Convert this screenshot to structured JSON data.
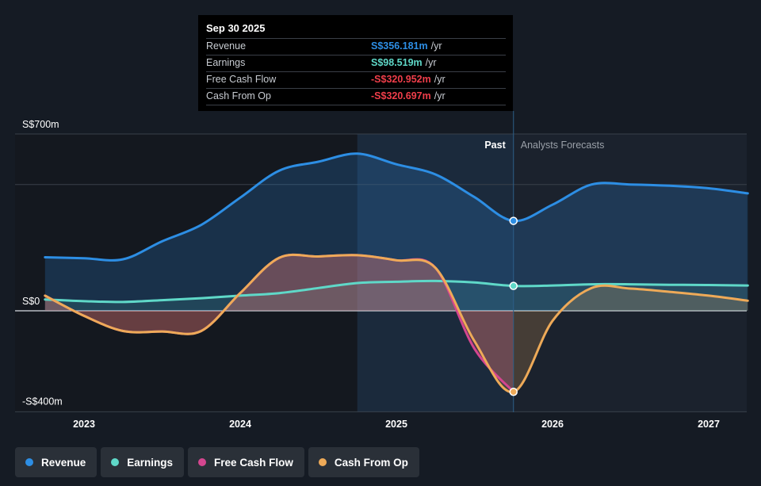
{
  "tooltip": {
    "date": "Sep 30 2025",
    "rows": [
      {
        "label": "Revenue",
        "value": "S$356.181m",
        "unit": "/yr",
        "color": "#2d8ee4"
      },
      {
        "label": "Earnings",
        "value": "S$98.519m",
        "unit": "/yr",
        "color": "#5fd8c8"
      },
      {
        "label": "Free Cash Flow",
        "value": "-S$320.952m",
        "unit": "/yr",
        "color": "#ef3e4a"
      },
      {
        "label": "Cash From Op",
        "value": "-S$320.697m",
        "unit": "/yr",
        "color": "#ef3e4a"
      }
    ]
  },
  "legend": [
    {
      "label": "Revenue",
      "color": "#2d8ee4"
    },
    {
      "label": "Earnings",
      "color": "#5fd8c8"
    },
    {
      "label": "Free Cash Flow",
      "color": "#d4468f"
    },
    {
      "label": "Cash From Op",
      "color": "#eeaa58"
    }
  ],
  "chart_data": {
    "type": "area",
    "y_unit": "S$m",
    "ylim": [
      -400,
      700
    ],
    "y_ticks": [
      {
        "value": 700,
        "label": "S$700m"
      },
      {
        "value": 0,
        "label": "S$0"
      },
      {
        "value": -400,
        "label": "-S$400m"
      }
    ],
    "gridlines": [
      700,
      500,
      0,
      -400
    ],
    "x_ticks": [
      "2023",
      "2024",
      "2025",
      "2026",
      "2027"
    ],
    "xlim": [
      2022.7,
      2027.25
    ],
    "region_labels": {
      "past": "Past",
      "forecast": "Analysts Forecasts"
    },
    "present_x": 2025.75,
    "highlight_start_x": 2024.75,
    "series": [
      {
        "name": "Revenue",
        "color": "#2d8ee4",
        "x": [
          2022.75,
          2023.0,
          2023.25,
          2023.5,
          2023.75,
          2024.0,
          2024.25,
          2024.5,
          2024.75,
          2025.0,
          2025.25,
          2025.5,
          2025.75,
          2026.0,
          2026.25,
          2026.5,
          2026.75,
          2027.0,
          2027.25
        ],
        "y": [
          212,
          208,
          204,
          275,
          340,
          448,
          555,
          590,
          622,
          580,
          540,
          450,
          356,
          420,
          500,
          500,
          495,
          485,
          465
        ]
      },
      {
        "name": "Earnings",
        "color": "#5fd8c8",
        "x": [
          2022.75,
          2023.0,
          2023.25,
          2023.5,
          2023.75,
          2024.0,
          2024.25,
          2024.5,
          2024.75,
          2025.0,
          2025.25,
          2025.5,
          2025.75,
          2026.0,
          2026.25,
          2026.5,
          2026.75,
          2027.0,
          2027.25
        ],
        "y": [
          45,
          38,
          35,
          42,
          50,
          60,
          70,
          90,
          110,
          115,
          118,
          112,
          98.5,
          100,
          105,
          105,
          103,
          102,
          100
        ]
      },
      {
        "name": "Free Cash Flow",
        "color": "#d4468f",
        "x": [
          2022.75,
          2023.0,
          2023.25,
          2023.5,
          2023.75,
          2024.0,
          2024.25,
          2024.5,
          2024.75,
          2025.0,
          2025.25,
          2025.5,
          2025.75
        ],
        "y": [
          60,
          -20,
          -80,
          -82,
          -80,
          70,
          210,
          215,
          220,
          200,
          170,
          -150,
          -321
        ]
      },
      {
        "name": "Cash From Op",
        "color": "#eeaa58",
        "x": [
          2022.75,
          2023.0,
          2023.25,
          2023.5,
          2023.75,
          2024.0,
          2024.25,
          2024.5,
          2024.75,
          2025.0,
          2025.25,
          2025.5,
          2025.75,
          2026.0,
          2026.25,
          2026.5,
          2026.75,
          2027.0,
          2027.25
        ],
        "y": [
          60,
          -20,
          -80,
          -82,
          -80,
          70,
          210,
          215,
          220,
          200,
          170,
          -120,
          -321,
          -40,
          90,
          88,
          75,
          60,
          40
        ]
      }
    ],
    "markers": [
      {
        "series": "Revenue",
        "x": 2025.75,
        "y": 356
      },
      {
        "series": "Earnings",
        "x": 2025.75,
        "y": 98.5
      },
      {
        "series": "Cash From Op",
        "x": 2025.75,
        "y": -321
      }
    ]
  }
}
